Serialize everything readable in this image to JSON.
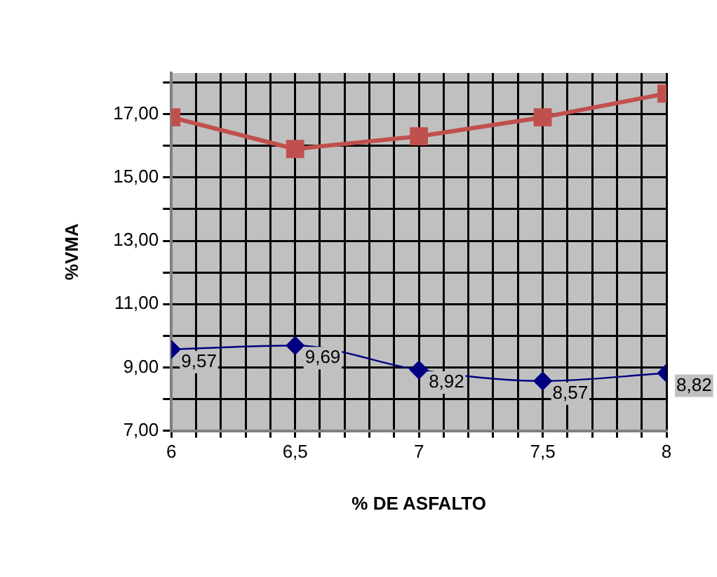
{
  "chart_data": {
    "type": "line",
    "xlabel": "% DE ASFALTO",
    "ylabel": "%VMA",
    "x": [
      6,
      6.5,
      7,
      7.5,
      8
    ],
    "series": [
      {
        "color": "#c0504d",
        "values": [
          16.9,
          15.9,
          16.3,
          16.9,
          17.65
        ],
        "marker": "square"
      },
      {
        "color": "#000080",
        "values": [
          9.57,
          9.69,
          8.92,
          8.57,
          8.82
        ],
        "marker": "diamond",
        "value_labels": [
          "9,57",
          "9,69",
          "8,92",
          "8,57",
          "8,82"
        ]
      }
    ],
    "xlim": [
      6,
      8
    ],
    "xticks": [
      {
        "value": 6,
        "label": "6"
      },
      {
        "value": 6.1,
        "label": null
      },
      {
        "value": 6.2,
        "label": null
      },
      {
        "value": 6.3,
        "label": null
      },
      {
        "value": 6.4,
        "label": null
      },
      {
        "value": 6.5,
        "label": "6,5"
      },
      {
        "value": 6.6,
        "label": null
      },
      {
        "value": 6.7,
        "label": null
      },
      {
        "value": 6.8,
        "label": null
      },
      {
        "value": 6.9,
        "label": null
      },
      {
        "value": 7,
        "label": "7"
      },
      {
        "value": 7.1,
        "label": null
      },
      {
        "value": 7.2,
        "label": null
      },
      {
        "value": 7.3,
        "label": null
      },
      {
        "value": 7.4,
        "label": null
      },
      {
        "value": 7.5,
        "label": "7,5"
      },
      {
        "value": 7.6,
        "label": null
      },
      {
        "value": 7.7,
        "label": null
      },
      {
        "value": 7.8,
        "label": null
      },
      {
        "value": 7.9,
        "label": null
      },
      {
        "value": 8,
        "label": "8"
      }
    ],
    "ylim": [
      7,
      18.3
    ],
    "yticks": [
      {
        "value": 7,
        "label": "7,00"
      },
      {
        "value": 8,
        "label": null
      },
      {
        "value": 9,
        "label": "9,00"
      },
      {
        "value": 10,
        "label": null
      },
      {
        "value": 11,
        "label": "11,00"
      },
      {
        "value": 12,
        "label": null
      },
      {
        "value": 13,
        "label": "13,00"
      },
      {
        "value": 14,
        "label": null
      },
      {
        "value": 15,
        "label": "15,00"
      },
      {
        "value": 16,
        "label": null
      },
      {
        "value": 17,
        "label": "17,00"
      },
      {
        "value": 18,
        "label": null
      }
    ],
    "grid": true,
    "legend": false
  }
}
